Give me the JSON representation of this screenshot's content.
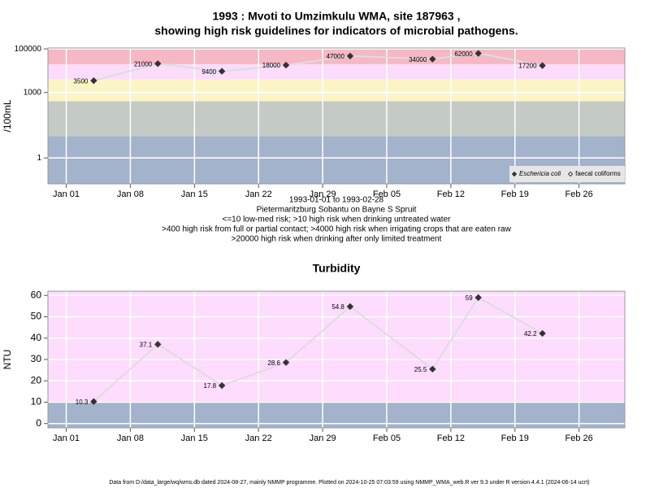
{
  "chart_data": [
    {
      "type": "line",
      "title": "1993 : Mvoti to Umzimkulu WMA, site 187963 ,",
      "subtitle": "showing high risk guidelines for indicators of microbial pathogens.",
      "y_label": "/100mL",
      "notes": [
        "1993-01-01 to 1993-02-28",
        "Pietermaritzburg Sobantu on Bayne S Spruit",
        "<=10 low-med risk; >10 high risk when drinking untreated water",
        ">400 high risk from full or partial contact; >4000 high risk when irrigating crops that are eaten raw",
        ">20000 high risk when drinking after only limited treatment"
      ],
      "x": [
        "1993-01-04",
        "1993-01-11",
        "1993-01-18",
        "1993-01-25",
        "1993-02-01",
        "1993-02-10",
        "1993-02-15",
        "1993-02-22"
      ],
      "series": [
        {
          "name": "Eschericia coli",
          "color": "#333333",
          "filled": true,
          "values": [
            3500,
            21000,
            9400,
            18000,
            47000,
            34000,
            62000,
            17200
          ]
        },
        {
          "name": "faecal coliforms",
          "color": "#333333",
          "filled": false,
          "values": [
            null,
            null,
            null,
            null,
            null,
            null,
            null,
            null
          ]
        }
      ],
      "log_scale": true,
      "ylim": [
        0.065,
        110000
      ],
      "yticks": [
        1,
        1000,
        100000
      ],
      "xlim": [
        "1992-12-30",
        "1993-03-03"
      ],
      "xticks": [
        {
          "value": "1993-01-01",
          "label": "Jan 01"
        },
        {
          "value": "1993-01-08",
          "label": "Jan 08"
        },
        {
          "value": "1993-01-15",
          "label": "Jan 15"
        },
        {
          "value": "1993-01-22",
          "label": "Jan 22"
        },
        {
          "value": "1993-01-29",
          "label": "Jan 29"
        },
        {
          "value": "1993-02-05",
          "label": "Feb 05"
        },
        {
          "value": "1993-02-12",
          "label": "Feb 12"
        },
        {
          "value": "1993-02-19",
          "label": "Feb 19"
        },
        {
          "value": "1993-02-26",
          "label": "Feb 26"
        }
      ],
      "band_thresholds": [
        10,
        400,
        4000,
        20000
      ],
      "band_colors": [
        "#a4b3cc",
        "#c4cbc4",
        "#fbf5c6",
        "#fbdcfb",
        "#f5b8c4"
      ],
      "legend": "lower right",
      "grid": true
    },
    {
      "type": "line",
      "title": "Turbidity",
      "y_label": "NTU",
      "x": [
        "1993-01-04",
        "1993-01-11",
        "1993-01-18",
        "1993-01-25",
        "1993-02-01",
        "1993-02-10",
        "1993-02-15",
        "1993-02-22"
      ],
      "series": [
        {
          "color": "#333333",
          "filled": true,
          "values": [
            10.3,
            37.1,
            17.8,
            28.6,
            54.8,
            25.5,
            59,
            42.2
          ]
        }
      ],
      "log_scale": false,
      "ylim": [
        -2,
        62
      ],
      "yticks": [
        0,
        10,
        20,
        30,
        40,
        50,
        60
      ],
      "xlim": [
        "1992-12-30",
        "1993-03-03"
      ],
      "xticks": [
        {
          "value": "1993-01-01",
          "label": "Jan 01"
        },
        {
          "value": "1993-01-08",
          "label": "Jan 08"
        },
        {
          "value": "1993-01-15",
          "label": "Jan 15"
        },
        {
          "value": "1993-01-22",
          "label": "Jan 22"
        },
        {
          "value": "1993-01-29",
          "label": "Jan 29"
        },
        {
          "value": "1993-02-05",
          "label": "Feb 05"
        },
        {
          "value": "1993-02-12",
          "label": "Feb 12"
        },
        {
          "value": "1993-02-19",
          "label": "Feb 19"
        },
        {
          "value": "1993-02-26",
          "label": "Feb 26"
        }
      ],
      "band_thresholds": [
        10
      ],
      "band_colors": [
        "#a4b3cc",
        "#fddcfd"
      ],
      "grid": true
    }
  ],
  "footer": "Data from D:/data_large/wq/wms.db dated 2024-08-27, mainly NMMP programme. Plotted on 2024-10-25 07:03:59 using NMMP_WMA_web.R ver 9.3 under R version 4.4.1 (2024-06-14 ucrt)"
}
